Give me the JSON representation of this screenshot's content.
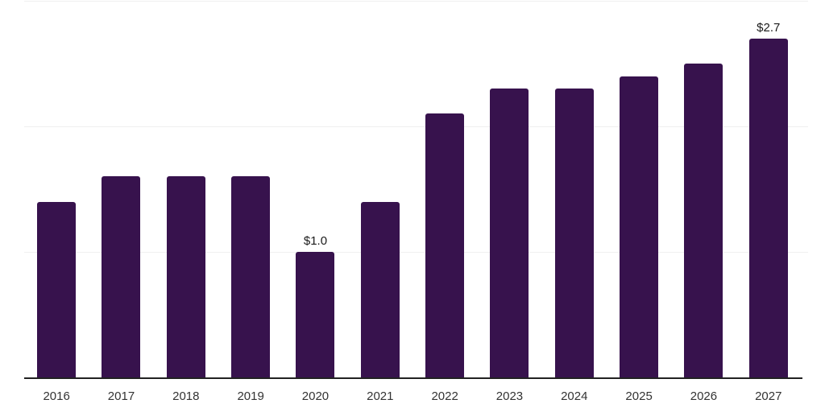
{
  "chart_data": {
    "type": "bar",
    "title": "",
    "xlabel": "",
    "ylabel": "",
    "categories": [
      "2016",
      "2017",
      "2018",
      "2019",
      "2020",
      "2021",
      "2022",
      "2023",
      "2024",
      "2025",
      "2026",
      "2027"
    ],
    "values": [
      1.4,
      1.6,
      1.6,
      1.6,
      1.0,
      1.4,
      2.1,
      2.3,
      2.3,
      2.4,
      2.5,
      2.7
    ],
    "data_labels": [
      "",
      "",
      "",
      "",
      "$1.0",
      "",
      "",
      "",
      "",
      "",
      "",
      "$2.7"
    ],
    "ylim": [
      0,
      3
    ],
    "gridline_values": [
      1,
      2,
      3
    ],
    "grid": "horizontal",
    "legend": "none"
  },
  "style": {
    "bar_color": "#37124D",
    "grid_color": "#F0F0F0",
    "axis_color": "#222222",
    "data_label_color": "#1A1A1A",
    "tick_label_color": "#333333",
    "background_color": "#FFFFFF"
  }
}
